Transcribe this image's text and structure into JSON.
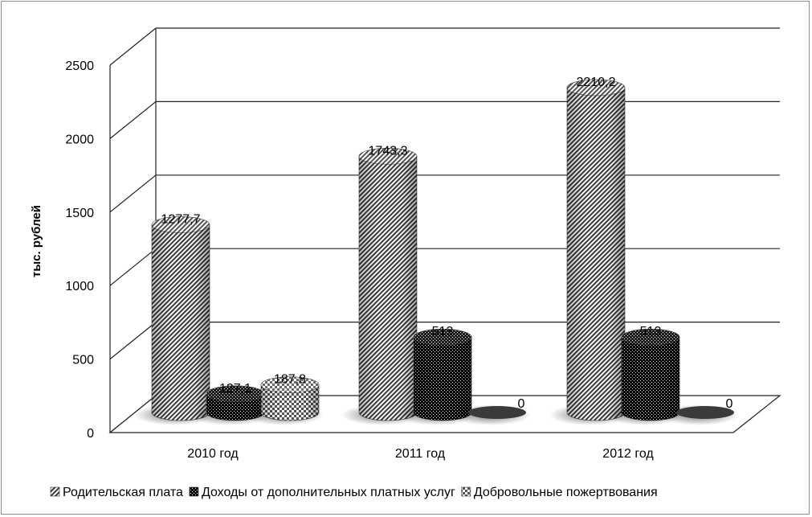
{
  "chart_data": {
    "type": "bar",
    "title": "",
    "xlabel": "",
    "ylabel": "тыс. рублей",
    "ylim": [
      0,
      2500
    ],
    "yticks": [
      0,
      500,
      1000,
      1500,
      2000,
      2500
    ],
    "grid": true,
    "legend_position": "bottom",
    "categories": [
      "2010 год",
      "2011 год",
      "2012 год"
    ],
    "series": [
      {
        "name": "Родительская плата",
        "values": [
          1277.7,
          1743.3,
          2210.2
        ],
        "labels": [
          "1277,7",
          "1743,3",
          "2210,2"
        ],
        "pattern": "diagonal"
      },
      {
        "name": "Доходы от дополнительных платных услуг",
        "values": [
          127.1,
          513,
          513
        ],
        "labels": [
          "127,1",
          "513",
          "513"
        ],
        "pattern": "dots"
      },
      {
        "name": "Добровольные пожертвования",
        "values": [
          187.8,
          0,
          0
        ],
        "labels": [
          "187,8",
          "0",
          "0"
        ],
        "pattern": "checker"
      }
    ]
  }
}
